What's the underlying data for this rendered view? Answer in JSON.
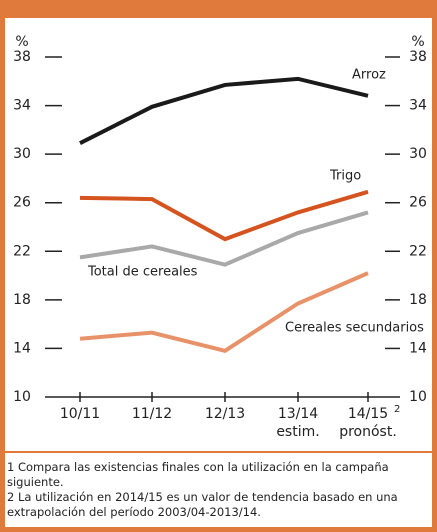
{
  "chart_data": {
    "type": "line",
    "y_unit_label": "%",
    "categories": [
      "10/11",
      "11/12",
      "12/13",
      "13/14",
      "14/15"
    ],
    "category_sublabels": [
      null,
      null,
      null,
      "estim.",
      "pronóst."
    ],
    "category_superscripts": [
      null,
      null,
      null,
      null,
      "2"
    ],
    "series": [
      {
        "name": "Arroz",
        "color": "#1a1a1a",
        "values": [
          30.9,
          33.9,
          35.7,
          36.2,
          34.8
        ]
      },
      {
        "name": "Trigo",
        "color": "#d4531e",
        "values": [
          26.4,
          26.3,
          23.0,
          25.2,
          26.9
        ]
      },
      {
        "name": "Total de cereales",
        "color": "#a9a9a9",
        "values": [
          21.5,
          22.4,
          20.9,
          23.5,
          25.2
        ]
      },
      {
        "name": "Cereales secundarios",
        "color": "#e8926a",
        "values": [
          14.8,
          15.3,
          13.8,
          17.7,
          20.2
        ]
      }
    ],
    "ylim": [
      10,
      38
    ],
    "yticks": [
      10,
      14,
      18,
      22,
      26,
      30,
      34,
      38
    ],
    "footnotes": [
      "1 Compara las existencias finales con la utilización en la campaña siguiente.",
      "2 La utilización en 2014/15 es un valor de tendencia basado en una extrapolación del período 2003/04-2013/14."
    ]
  }
}
